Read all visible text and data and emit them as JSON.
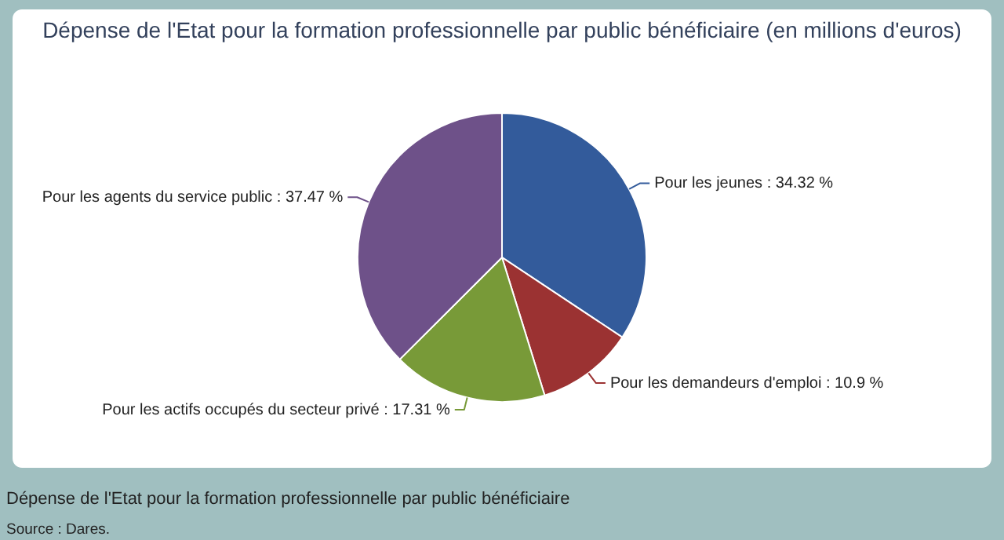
{
  "chart_data": {
    "type": "pie",
    "title": "Dépense de l'Etat pour la formation professionnelle par public bénéficiaire (en millions d'euros)",
    "categories": [
      "Pour les jeunes",
      "Pour les demandeurs d'emploi",
      "Pour les actifs occupés du secteur privé",
      "Pour les agents du service public"
    ],
    "values": [
      34.32,
      10.9,
      17.31,
      37.47
    ],
    "colors": [
      "#335b9b",
      "#9b3232",
      "#789a38",
      "#6e5189"
    ],
    "value_labels": [
      "34.32 %",
      "10.9 %",
      "17.31 %",
      "37.47 %"
    ],
    "annotations": [
      "Dépense de l'Etat pour la formation professionnelle par public bénéficiaire",
      "Source : Dares."
    ]
  }
}
